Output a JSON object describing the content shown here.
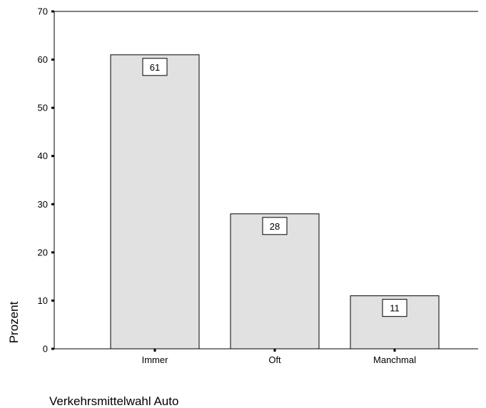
{
  "chart_data": {
    "type": "bar",
    "categories": [
      "Immer",
      "Oft",
      "Manchmal"
    ],
    "values": [
      61,
      28,
      11
    ],
    "value_labels": [
      "61",
      "28",
      "11"
    ],
    "xlabel": "Verkehrsmittelwahl Auto",
    "ylabel": "Prozent",
    "ylim": [
      0,
      70
    ],
    "yticks": [
      "0",
      "10",
      "20",
      "30",
      "40",
      "50",
      "60",
      "70"
    ],
    "grid": false,
    "colors": {
      "bar_fill": "#e1e1e1",
      "bar_stroke": "#000000",
      "axis": "#000000"
    }
  }
}
